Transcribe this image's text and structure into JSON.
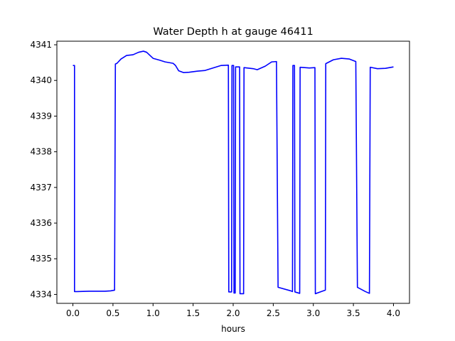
{
  "chart_data": {
    "type": "line",
    "title": "Water Depth h at gauge 46411",
    "xlabel": "hours",
    "ylabel": "",
    "xlim": [
      -0.2,
      4.2
    ],
    "ylim": [
      4333.75,
      4341.1
    ],
    "xticks": [
      0.0,
      0.5,
      1.0,
      1.5,
      2.0,
      2.5,
      3.0,
      3.5,
      4.0
    ],
    "xtick_labels": [
      "0.0",
      "0.5",
      "1.0",
      "1.5",
      "2.0",
      "2.5",
      "3.0",
      "3.5",
      "4.0"
    ],
    "yticks": [
      4334,
      4335,
      4336,
      4337,
      4338,
      4339,
      4340,
      4341
    ],
    "ytick_labels": [
      "4334",
      "4335",
      "4336",
      "4337",
      "4338",
      "4339",
      "4340",
      "4341"
    ],
    "grid": false,
    "legend": "none",
    "series": [
      {
        "color": "#0000ff",
        "points": [
          [
            0.0,
            4340.42
          ],
          [
            0.02,
            4340.42
          ],
          [
            0.02,
            4334.08
          ],
          [
            0.05,
            4334.08
          ],
          [
            0.2,
            4334.09
          ],
          [
            0.4,
            4334.09
          ],
          [
            0.47,
            4334.1
          ],
          [
            0.52,
            4334.12
          ],
          [
            0.53,
            4340.46
          ],
          [
            0.55,
            4340.48
          ],
          [
            0.6,
            4340.6
          ],
          [
            0.67,
            4340.7
          ],
          [
            0.75,
            4340.72
          ],
          [
            0.82,
            4340.79
          ],
          [
            0.88,
            4340.82
          ],
          [
            0.92,
            4340.79
          ],
          [
            1.0,
            4340.62
          ],
          [
            1.08,
            4340.57
          ],
          [
            1.15,
            4340.52
          ],
          [
            1.25,
            4340.48
          ],
          [
            1.28,
            4340.42
          ],
          [
            1.32,
            4340.27
          ],
          [
            1.38,
            4340.22
          ],
          [
            1.45,
            4340.23
          ],
          [
            1.55,
            4340.26
          ],
          [
            1.65,
            4340.28
          ],
          [
            1.75,
            4340.35
          ],
          [
            1.85,
            4340.42
          ],
          [
            1.94,
            4340.43
          ],
          [
            1.945,
            4334.07
          ],
          [
            1.98,
            4334.07
          ],
          [
            1.985,
            4340.42
          ],
          [
            2.005,
            4340.42
          ],
          [
            2.01,
            4334.04
          ],
          [
            2.025,
            4334.04
          ],
          [
            2.03,
            4340.38
          ],
          [
            2.08,
            4340.38
          ],
          [
            2.085,
            4334.02
          ],
          [
            2.13,
            4334.02
          ],
          [
            2.135,
            4340.36
          ],
          [
            2.25,
            4340.33
          ],
          [
            2.3,
            4340.3
          ],
          [
            2.4,
            4340.4
          ],
          [
            2.48,
            4340.52
          ],
          [
            2.54,
            4340.53
          ],
          [
            2.56,
            4334.2
          ],
          [
            2.72,
            4334.1
          ],
          [
            2.74,
            4334.08
          ],
          [
            2.745,
            4340.42
          ],
          [
            2.765,
            4340.42
          ],
          [
            2.77,
            4334.07
          ],
          [
            2.83,
            4334.03
          ],
          [
            2.835,
            4340.37
          ],
          [
            2.95,
            4340.35
          ],
          [
            3.02,
            4340.36
          ],
          [
            3.025,
            4334.02
          ],
          [
            3.1,
            4334.08
          ],
          [
            3.15,
            4334.12
          ],
          [
            3.155,
            4340.47
          ],
          [
            3.25,
            4340.58
          ],
          [
            3.35,
            4340.62
          ],
          [
            3.45,
            4340.6
          ],
          [
            3.53,
            4340.53
          ],
          [
            3.55,
            4334.2
          ],
          [
            3.65,
            4334.08
          ],
          [
            3.7,
            4334.03
          ],
          [
            3.71,
            4340.37
          ],
          [
            3.8,
            4340.33
          ],
          [
            3.9,
            4340.34
          ],
          [
            4.0,
            4340.38
          ]
        ]
      }
    ]
  }
}
